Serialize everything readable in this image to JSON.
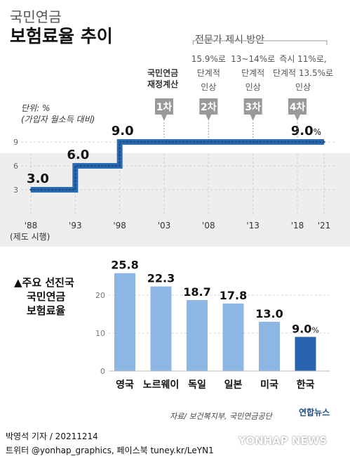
{
  "header": {
    "title_line1": "국민연금",
    "title_line2": "보험료율 추이"
  },
  "line_chart_labels": {
    "unit_line1": "단위: %",
    "unit_line2": "(가입자 월소득 대비)",
    "first_year_note": "(제도 시행)",
    "expert_header": "전문가 제시 방안",
    "fiscal_line1": "국민연금",
    "fiscal_line2": "재정계산",
    "proposals": [
      {
        "badge": "1차",
        "x": 2003,
        "lines": []
      },
      {
        "badge": "2차",
        "x": 2008,
        "lines": [
          "15.9%로",
          "단계적",
          "인상"
        ]
      },
      {
        "badge": "3차",
        "x": 2013,
        "lines": [
          "13~14%로",
          "단계적",
          "인상"
        ]
      },
      {
        "badge": "4차",
        "x": 2018,
        "lines": [
          "즉시 11%로,",
          "단계적 13.5%로",
          "인상"
        ]
      }
    ]
  },
  "bar_chart_labels": {
    "title_line1": "▲주요 선진국",
    "title_line2": "국민연금",
    "title_line3": "보험료율"
  },
  "source": "자료/ 보건복지부, 국민연금공단",
  "logo": "연합뉴스",
  "footer": {
    "line1": "박영석 기자 / 20211214",
    "line2": "트위터 @yonhap_graphics, 페이스북 tuney.kr/LeYN1",
    "watermark": "YONHAP NEWS"
  },
  "colors": {
    "line": "#2a6db5",
    "bar": "#8db6e3",
    "bar_highlight": "#2a63ae",
    "badge": "#999999"
  },
  "chart_data": [
    {
      "type": "line",
      "x": [
        1988,
        1993,
        1998,
        2003,
        2008,
        2013,
        2018,
        2021
      ],
      "xticklabels": [
        "'88",
        "'93",
        "'98",
        "'03",
        "'08",
        "'13",
        "'18",
        "'21"
      ],
      "steps": [
        {
          "x": 1988,
          "y": 3.0
        },
        {
          "x": 1993,
          "y": 6.0
        },
        {
          "x": 1998,
          "y": 9.0
        },
        {
          "x": 2021,
          "y": 9.0
        }
      ],
      "value_labels": [
        {
          "x": 1988,
          "text": "3.0"
        },
        {
          "x": 1993,
          "text": "6.0"
        },
        {
          "x": 1998,
          "text": "9.0"
        },
        {
          "x": 2021,
          "text": "9.0",
          "suffix": "%"
        }
      ],
      "yticks": [
        3,
        6,
        9
      ],
      "ylim": [
        0,
        10
      ],
      "xlim": [
        1988,
        2021
      ],
      "grid": true
    },
    {
      "type": "bar",
      "categories": [
        "영국",
        "노르웨이",
        "독일",
        "일본",
        "미국",
        "한국"
      ],
      "values": [
        25.8,
        22.3,
        18.7,
        17.8,
        13.0,
        9.0
      ],
      "value_labels": [
        "25.8",
        "22.3",
        "18.7",
        "17.8",
        "13.0",
        "9.0"
      ],
      "highlight": "한국",
      "yticks": [
        0,
        10,
        20
      ],
      "ylim": [
        0,
        27
      ],
      "grid": true
    }
  ]
}
